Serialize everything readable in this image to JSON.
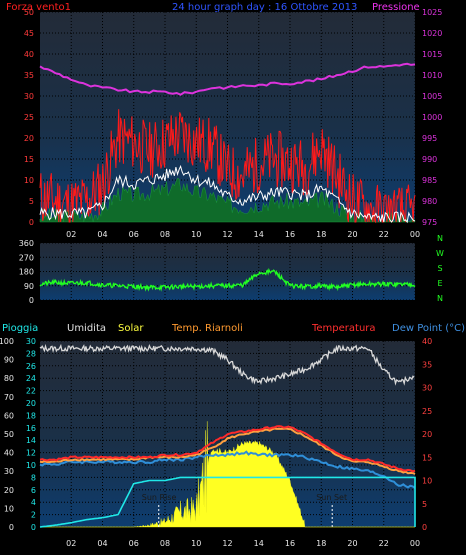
{
  "header": {
    "wind_label": "Forza vento1",
    "title": "24 hour graph day : 16 Ottobre 2013",
    "pressure_label": "Pressione"
  },
  "colors": {
    "background": "#000000",
    "plot_top": "#1f2a3a",
    "plot_bottom": "#0f3a66",
    "wind_speed": "#ff1a1a",
    "wind_avg": "#ffffff",
    "wind_dir": "#22ff22",
    "gust_fill": "#0f6b2a",
    "pressure": "#dd33dd",
    "humidity": "#d8d8d8",
    "temperature": "#ff2a2a",
    "temp_sheltered": "#ffa040",
    "dewpoint": "#2f8fd8",
    "rain": "#20e8e8",
    "solar": "#ffff22",
    "axis_left_top": "#ff3a3a",
    "axis_right_top": "#dd33dd",
    "axis_x": "#e8e8e8",
    "wdir_axis": "#22ff22"
  },
  "x_ticks": [
    "02",
    "04",
    "06",
    "08",
    "10",
    "12",
    "14",
    "16",
    "18",
    "20",
    "22",
    "00"
  ],
  "wind_axis": [
    "0",
    "5",
    "10",
    "15",
    "20",
    "25",
    "30",
    "35",
    "40",
    "45",
    "50"
  ],
  "pressure_axis": [
    "975",
    "980",
    "985",
    "990",
    "995",
    "1000",
    "1005",
    "1010",
    "1015",
    "1020",
    "1025"
  ],
  "dir_axis": [
    "0",
    "90",
    "180",
    "270",
    "360"
  ],
  "dir_letters": [
    "N",
    "W",
    "S",
    "E",
    "N"
  ],
  "bottom_labels": {
    "rain": "Pioggia",
    "humidity": "Umidita",
    "solar": "Solar",
    "temp2": "Temp. Riarnoli",
    "temp": "Temperatura",
    "dew": "Dew Point (°C)"
  },
  "pct_axis": [
    "0",
    "10",
    "20",
    "30",
    "40",
    "50",
    "60",
    "70",
    "80",
    "90",
    "100"
  ],
  "mm_axis": [
    "0",
    "2",
    "4",
    "6",
    "8",
    "10",
    "12",
    "14",
    "16",
    "18",
    "20",
    "22",
    "24",
    "26",
    "28",
    "30"
  ],
  "temp_axis": [
    "0",
    "5",
    "10",
    "15",
    "20",
    "25",
    "30",
    "35",
    "40"
  ],
  "annotations": {
    "sunrise": "Sun Rise",
    "sunset": "Sun Set"
  },
  "chart_data": [
    {
      "type": "line",
      "title": "24 hour graph day : 16 Ottobre 2013",
      "x_hours": [
        0,
        1,
        2,
        3,
        4,
        5,
        6,
        7,
        8,
        9,
        10,
        11,
        12,
        13,
        14,
        15,
        16,
        17,
        18,
        19,
        20,
        21,
        22,
        23,
        24
      ],
      "series": [
        {
          "name": "Forza vento1",
          "axis": "left",
          "ylim": [
            0,
            50
          ],
          "values": [
            6,
            5,
            4,
            5,
            9,
            20,
            19,
            17,
            19,
            21,
            19,
            18,
            12,
            11,
            14,
            15,
            14,
            13,
            18,
            11,
            5,
            3,
            2,
            2,
            2
          ]
        },
        {
          "name": "wind avg",
          "axis": "left",
          "ylim": [
            0,
            50
          ],
          "values": [
            2,
            2,
            2,
            2,
            4,
            10,
            9,
            10,
            11,
            13,
            10,
            9,
            6,
            5,
            6,
            7,
            7,
            6,
            8,
            5,
            2,
            1,
            1,
            1,
            1
          ]
        },
        {
          "name": "Pressione",
          "axis": "right",
          "ylim": [
            975,
            1025
          ],
          "values": [
            1012,
            1010.5,
            1009,
            1007.5,
            1007,
            1006.5,
            1006,
            1006,
            1006,
            1005.5,
            1006,
            1007,
            1007,
            1007.5,
            1007.5,
            1008,
            1008,
            1008.5,
            1009,
            1010,
            1011,
            1012,
            1012,
            1012.5,
            1012.5
          ]
        }
      ]
    },
    {
      "type": "line",
      "ylim": [
        0,
        360
      ],
      "x_hours": [
        0,
        1,
        2,
        3,
        4,
        5,
        6,
        7,
        8,
        9,
        10,
        11,
        12,
        13,
        14,
        15,
        16,
        17,
        18,
        19,
        20,
        21,
        22,
        23,
        24
      ],
      "series": [
        {
          "name": "wind direction",
          "values": [
            100,
            110,
            105,
            110,
            95,
            90,
            85,
            80,
            80,
            85,
            85,
            90,
            90,
            95,
            170,
            180,
            90,
            85,
            90,
            80,
            95,
            100,
            100,
            100,
            100
          ]
        }
      ]
    },
    {
      "type": "line",
      "x_hours": [
        0,
        1,
        2,
        3,
        4,
        5,
        6,
        7,
        8,
        9,
        10,
        11,
        12,
        13,
        14,
        15,
        16,
        17,
        18,
        19,
        20,
        21,
        22,
        23,
        24
      ],
      "series": [
        {
          "name": "Umidita",
          "axis": "pct",
          "ylim": [
            0,
            100
          ],
          "values": [
            96,
            96,
            96,
            96,
            96,
            96,
            96,
            96,
            96,
            96,
            96,
            95,
            90,
            82,
            78,
            80,
            82,
            85,
            90,
            96,
            96,
            96,
            84,
            77,
            82
          ]
        },
        {
          "name": "Temperatura",
          "axis": "temp",
          "ylim": [
            0,
            40
          ],
          "values": [
            14.5,
            14.5,
            15,
            15,
            15,
            15,
            15,
            15,
            15.5,
            15.5,
            16,
            18,
            20,
            20.5,
            21,
            21.5,
            21.5,
            20,
            18,
            16,
            14.5,
            14.5,
            13.5,
            12.5,
            12
          ]
        },
        {
          "name": "Temp. Riarnoli",
          "axis": "temp",
          "ylim": [
            0,
            40
          ],
          "values": [
            14,
            14,
            14.5,
            14.5,
            14.5,
            14.5,
            14.5,
            15,
            15,
            15,
            15.5,
            17,
            19,
            20,
            20.5,
            21,
            21,
            19.5,
            17.5,
            15.5,
            14,
            14,
            13,
            12,
            11.5
          ]
        },
        {
          "name": "Dew Point (°C)",
          "axis": "temp",
          "ylim": [
            0,
            40
          ],
          "values": [
            13.5,
            13.5,
            14,
            14,
            14,
            14,
            14,
            14,
            14.5,
            14.5,
            15,
            15.5,
            15.5,
            16,
            15.5,
            15.5,
            15.5,
            15,
            14,
            13,
            12.5,
            12,
            11,
            9,
            8.5
          ]
        },
        {
          "name": "Pioggia",
          "axis": "mm",
          "ylim": [
            0,
            30
          ],
          "values": [
            0,
            0.3,
            0.7,
            1.2,
            1.5,
            2,
            7,
            7.5,
            7.5,
            8,
            8,
            8,
            8,
            8,
            8,
            8,
            8,
            8,
            8,
            8,
            8,
            8,
            8,
            8,
            8
          ]
        },
        {
          "name": "Solar",
          "axis": "pct",
          "ylim": [
            0,
            100
          ],
          "values": [
            0,
            0,
            0,
            0,
            0,
            0,
            0,
            1,
            3,
            8,
            10,
            42,
            40,
            45,
            45,
            40,
            25,
            0,
            0,
            0,
            0,
            0,
            0,
            0,
            0
          ]
        }
      ],
      "sunrise_hour": 7.6,
      "sunset_hour": 18.7
    }
  ]
}
